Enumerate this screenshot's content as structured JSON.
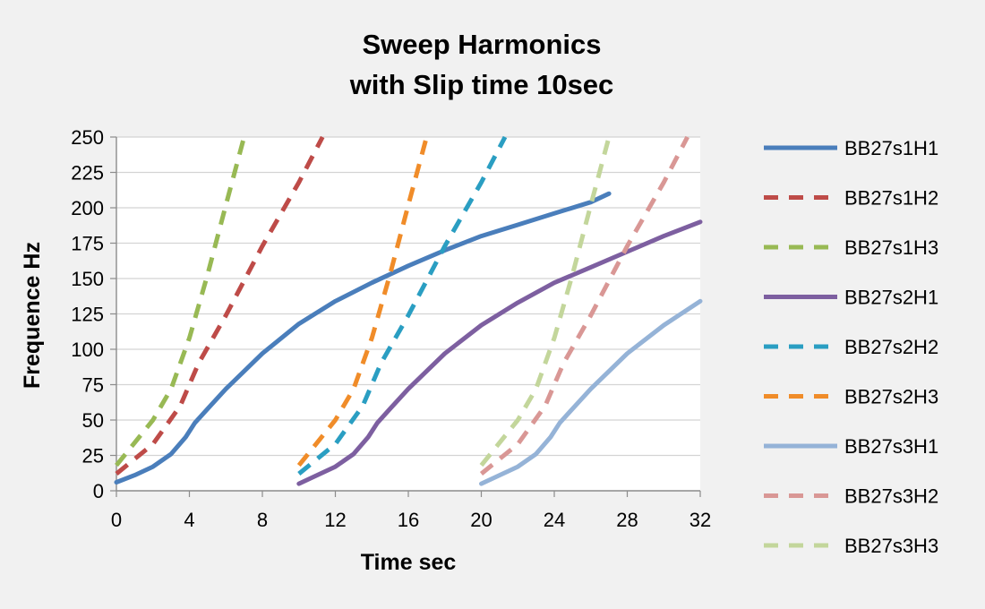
{
  "chart_data": {
    "type": "line",
    "title": "Sweep Harmonics",
    "subtitle": "with Slip time 10sec",
    "xlabel": "Time sec",
    "ylabel": "Frequence Hz",
    "xlim": [
      0,
      32
    ],
    "ylim": [
      0,
      250
    ],
    "x_ticks": [
      0,
      4,
      8,
      12,
      16,
      20,
      24,
      28,
      32
    ],
    "y_ticks": [
      0,
      25,
      50,
      75,
      100,
      125,
      150,
      175,
      200,
      225,
      250
    ],
    "grid": "horizontal",
    "legend_position": "right",
    "series": [
      {
        "name": "BB27s1H1",
        "color": "#4a7ebb",
        "dashed": false,
        "points": [
          [
            0,
            6
          ],
          [
            1,
            11
          ],
          [
            2,
            17
          ],
          [
            3,
            26
          ],
          [
            3.8,
            38
          ],
          [
            4.3,
            48
          ],
          [
            5,
            58
          ],
          [
            6,
            72
          ],
          [
            8,
            97
          ],
          [
            10,
            118
          ],
          [
            12,
            134
          ],
          [
            14,
            147
          ],
          [
            16,
            159
          ],
          [
            18,
            170
          ],
          [
            20,
            180
          ],
          [
            22,
            188
          ],
          [
            24,
            196
          ],
          [
            26,
            204
          ],
          [
            27,
            210
          ]
        ]
      },
      {
        "name": "BB27s1H2",
        "color": "#be4b48",
        "dashed": true,
        "points": [
          [
            0,
            12
          ],
          [
            2,
            33
          ],
          [
            3.5,
            60
          ],
          [
            4.5,
            90
          ],
          [
            6,
            124
          ],
          [
            8,
            173
          ],
          [
            10,
            218
          ],
          [
            11.3,
            250
          ]
        ]
      },
      {
        "name": "BB27s1H3",
        "color": "#98b954",
        "dashed": true,
        "points": [
          [
            0,
            18
          ],
          [
            2,
            50
          ],
          [
            3,
            72
          ],
          [
            4,
            108
          ],
          [
            5,
            153
          ],
          [
            6,
            202
          ],
          [
            7,
            250
          ]
        ]
      },
      {
        "name": "BB27s2H1",
        "color": "#7d5fa0",
        "dashed": false,
        "points": [
          [
            10,
            5
          ],
          [
            11,
            11
          ],
          [
            12,
            17
          ],
          [
            13,
            26
          ],
          [
            13.8,
            38
          ],
          [
            14.3,
            48
          ],
          [
            15,
            58
          ],
          [
            16,
            72
          ],
          [
            18,
            97
          ],
          [
            20,
            117
          ],
          [
            22,
            133
          ],
          [
            24,
            147
          ],
          [
            26,
            158
          ],
          [
            28,
            169
          ],
          [
            30,
            180
          ],
          [
            32,
            190
          ]
        ]
      },
      {
        "name": "BB27s2H2",
        "color": "#2a9ec2",
        "dashed": true,
        "points": [
          [
            10,
            12
          ],
          [
            12,
            33
          ],
          [
            13.5,
            60
          ],
          [
            14.5,
            90
          ],
          [
            16,
            124
          ],
          [
            18,
            173
          ],
          [
            20,
            218
          ],
          [
            21.3,
            250
          ]
        ]
      },
      {
        "name": "BB27s2H3",
        "color": "#f08c29",
        "dashed": true,
        "points": [
          [
            10,
            18
          ],
          [
            12,
            50
          ],
          [
            13,
            72
          ],
          [
            14,
            108
          ],
          [
            15,
            153
          ],
          [
            16,
            202
          ],
          [
            17,
            250
          ]
        ]
      },
      {
        "name": "BB27s3H1",
        "color": "#95b3d7",
        "dashed": false,
        "points": [
          [
            20,
            5
          ],
          [
            21,
            11
          ],
          [
            22,
            17
          ],
          [
            23,
            26
          ],
          [
            23.8,
            38
          ],
          [
            24.3,
            48
          ],
          [
            25,
            58
          ],
          [
            26,
            72
          ],
          [
            28,
            97
          ],
          [
            30,
            117
          ],
          [
            32,
            134
          ]
        ]
      },
      {
        "name": "BB27s3H2",
        "color": "#d99795",
        "dashed": true,
        "points": [
          [
            20,
            12
          ],
          [
            22,
            33
          ],
          [
            23.5,
            60
          ],
          [
            24.5,
            90
          ],
          [
            26,
            124
          ],
          [
            28,
            173
          ],
          [
            30,
            218
          ],
          [
            31.3,
            250
          ]
        ]
      },
      {
        "name": "BB27s3H3",
        "color": "#c3d69b",
        "dashed": true,
        "points": [
          [
            20,
            18
          ],
          [
            22,
            50
          ],
          [
            23,
            72
          ],
          [
            24,
            108
          ],
          [
            25,
            153
          ],
          [
            26,
            202
          ],
          [
            27,
            250
          ]
        ]
      }
    ]
  }
}
